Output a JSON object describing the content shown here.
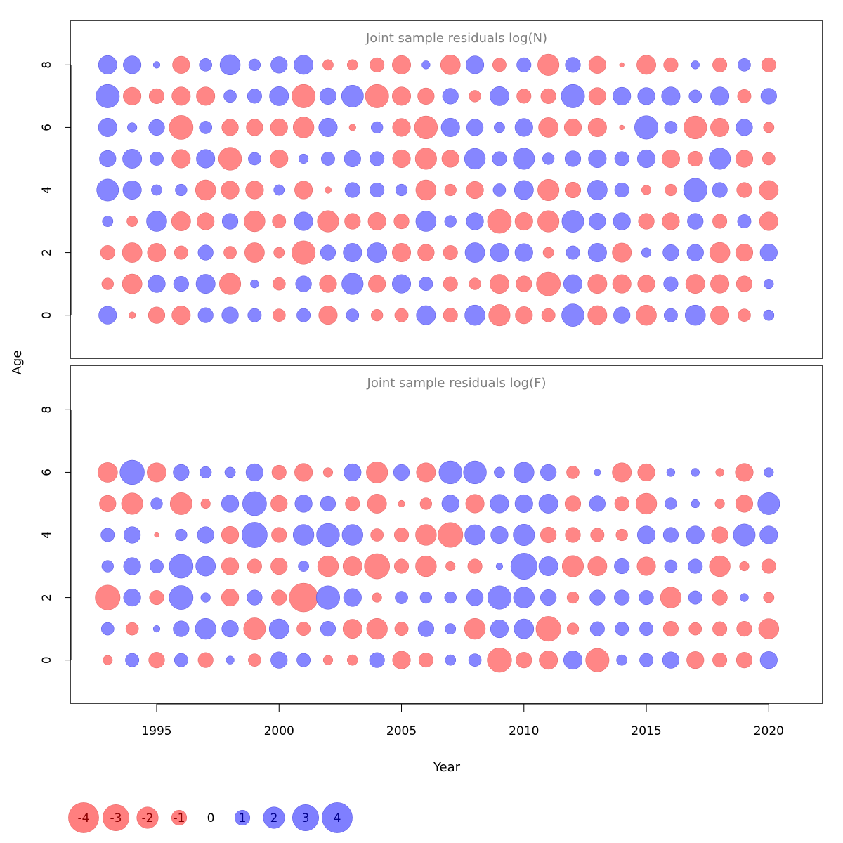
{
  "chart_data": {
    "type": "bubble",
    "xlabel": "Year",
    "ylabel": "Age",
    "xlim": [
      1991.5,
      2022.2
    ],
    "x_ticks": [
      1995,
      2000,
      2005,
      2010,
      2015,
      2020
    ],
    "colors": {
      "positive": "#7f7fff",
      "negative": "#ff7f7f",
      "positive_text": "#00008b",
      "negative_text": "#8b0000"
    },
    "legend": {
      "placement": "bottom-left",
      "values": [
        -4,
        -3,
        -2,
        -1,
        0,
        1,
        2,
        3,
        4
      ]
    },
    "panels": [
      {
        "title": "Joint sample residuals log(N)",
        "ylim": [
          -1.4,
          9.4
        ],
        "y_ticks": [
          0,
          2,
          4,
          6,
          8
        ],
        "years": [
          1993,
          1994,
          1995,
          1996,
          1997,
          1998,
          1999,
          2000,
          2001,
          2002,
          2003,
          2004,
          2005,
          2006,
          2007,
          2008,
          2009,
          2010,
          2011,
          2012,
          2013,
          2014,
          2015,
          2016,
          2017,
          2018,
          2019,
          2020
        ],
        "ages": [
          0,
          1,
          2,
          3,
          4,
          5,
          6,
          7,
          8
        ],
        "residuals": [
          [
            1.4,
            -0.2,
            -1.2,
            -1.5,
            1.0,
            1.2,
            0.8,
            -0.7,
            0.8,
            -1.5,
            0.7,
            -0.6,
            -0.8,
            1.6,
            -0.9,
            1.8,
            -2.0,
            -1.3,
            -0.8,
            2.2,
            -1.6,
            1.2,
            -1.8,
            0.8,
            1.8,
            -1.5,
            -0.7,
            0.5
          ],
          [
            -0.6,
            -1.7,
            1.3,
            1.0,
            1.6,
            -2.0,
            0.3,
            -0.7,
            1.1,
            -1.3,
            2.0,
            -1.3,
            1.5,
            0.8,
            -0.9,
            -0.6,
            -1.6,
            -1.1,
            -2.5,
            1.5,
            -1.6,
            -1.5,
            -1.3,
            0.9,
            -1.6,
            -1.5,
            -1.1,
            0.4
          ],
          [
            -0.9,
            -1.7,
            -1.5,
            -0.8,
            1.0,
            -0.7,
            -1.7,
            -0.5,
            -2.4,
            1.0,
            1.5,
            1.7,
            -1.5,
            -1.2,
            -0.9,
            1.7,
            1.5,
            1.4,
            -0.5,
            0.8,
            1.5,
            -1.6,
            0.4,
            1.1,
            1.2,
            -1.8,
            -1.3,
            1.3
          ],
          [
            0.5,
            -0.5,
            1.8,
            -1.6,
            -1.3,
            1.1,
            -1.9,
            -0.8,
            1.5,
            -2.0,
            -1.1,
            -1.4,
            -1.0,
            1.8,
            0.6,
            1.3,
            -2.5,
            -1.4,
            -2.0,
            2.1,
            1.2,
            1.3,
            -1.1,
            -1.3,
            1.1,
            -0.9,
            0.8,
            -1.5
          ],
          [
            2.1,
            1.5,
            0.5,
            0.6,
            -1.8,
            -1.4,
            -1.4,
            0.5,
            -1.4,
            -0.2,
            1.0,
            0.9,
            0.6,
            -1.8,
            -0.6,
            -1.3,
            0.7,
            1.6,
            -2.0,
            -1.1,
            1.7,
            0.9,
            -0.4,
            -0.6,
            2.4,
            1.0,
            -1.0,
            -1.6
          ],
          [
            1.2,
            1.6,
            0.8,
            -1.5,
            1.5,
            -2.3,
            0.7,
            -1.4,
            0.4,
            0.8,
            1.2,
            0.9,
            -1.4,
            -2.0,
            -1.3,
            1.9,
            0.9,
            2.0,
            0.6,
            1.1,
            1.4,
            0.9,
            1.4,
            -1.4,
            -1.0,
            2.0,
            -1.3,
            -0.7
          ],
          [
            1.5,
            0.4,
            1.1,
            -2.5,
            0.7,
            -1.2,
            -1.2,
            -1.3,
            -1.9,
            1.5,
            -0.2,
            0.6,
            -1.4,
            -2.3,
            1.5,
            1.2,
            0.5,
            1.4,
            -1.7,
            -1.3,
            -1.5,
            -0.1,
            2.4,
            0.7,
            -2.3,
            -1.5,
            1.2,
            -0.5
          ],
          [
            2.4,
            -1.4,
            -1.0,
            -1.5,
            -1.5,
            0.7,
            0.9,
            1.6,
            -2.4,
            1.2,
            2.1,
            -2.4,
            -1.5,
            -1.2,
            1.1,
            -0.6,
            1.6,
            -0.9,
            -1.0,
            2.4,
            -1.3,
            1.4,
            1.3,
            1.5,
            0.7,
            1.5,
            -0.8,
            1.1
          ],
          [
            1.5,
            1.4,
            0.2,
            -1.3,
            0.7,
            1.8,
            0.6,
            1.2,
            1.6,
            -0.5,
            -0.5,
            -0.9,
            -1.5,
            0.3,
            -1.7,
            1.4,
            -0.8,
            0.9,
            -2.0,
            1.0,
            -1.3,
            -0.1,
            -1.6,
            -0.9,
            0.3,
            -0.9,
            0.7,
            -0.9
          ]
        ]
      },
      {
        "title": "Joint sample residuals log(F)",
        "ylim": [
          -1.4,
          9.4
        ],
        "y_ticks": [
          0,
          2,
          4,
          6,
          8
        ],
        "years": [
          1993,
          1994,
          1995,
          1996,
          1997,
          1998,
          1999,
          2000,
          2001,
          2002,
          2003,
          2004,
          2005,
          2006,
          2007,
          2008,
          2009,
          2010,
          2011,
          2012,
          2013,
          2014,
          2015,
          2016,
          2017,
          2018,
          2019,
          2020
        ],
        "ages": [
          0,
          1,
          2,
          3,
          4,
          5,
          6
        ],
        "residuals": [
          [
            -0.4,
            0.8,
            -1.1,
            0.8,
            -1.0,
            0.3,
            -0.7,
            1.2,
            0.8,
            -0.4,
            -0.5,
            1.0,
            -1.4,
            -0.9,
            0.5,
            0.7,
            -2.6,
            -1.1,
            -1.5,
            1.5,
            -2.4,
            0.5,
            0.8,
            1.2,
            -1.3,
            -0.9,
            -1.1,
            1.3
          ],
          [
            0.7,
            -0.7,
            0.2,
            1.1,
            1.9,
            1.2,
            -2.1,
            1.7,
            -0.8,
            1.0,
            -1.6,
            -1.9,
            -0.8,
            1.1,
            0.5,
            -1.9,
            1.4,
            1.7,
            -2.7,
            -0.6,
            0.9,
            0.8,
            0.8,
            -1.0,
            -0.7,
            -0.9,
            -1.0,
            -1.8
          ],
          [
            -2.7,
            1.3,
            -0.9,
            2.5,
            0.4,
            -1.3,
            1.0,
            -1.0,
            -3.6,
            2.4,
            1.4,
            -0.4,
            0.7,
            0.6,
            0.6,
            1.2,
            2.4,
            1.9,
            1.1,
            -0.6,
            1.0,
            1.0,
            0.9,
            -1.9,
            0.8,
            -1.0,
            0.3,
            -0.5
          ],
          [
            0.6,
            1.3,
            0.8,
            2.5,
            1.7,
            -1.3,
            -0.9,
            -1.2,
            0.5,
            -1.9,
            -1.6,
            -2.8,
            -0.9,
            -1.9,
            -0.4,
            -0.9,
            0.2,
            3.0,
            1.6,
            -2.0,
            -1.6,
            1.0,
            -1.5,
            0.7,
            0.9,
            -1.9,
            -0.4,
            -0.9
          ],
          [
            0.8,
            1.2,
            -0.1,
            0.6,
            1.2,
            -1.3,
            2.8,
            -1.0,
            1.9,
            2.3,
            1.9,
            -0.7,
            -0.9,
            -1.9,
            -2.7,
            1.8,
            1.3,
            2.0,
            -1.1,
            -1.0,
            -0.8,
            -0.6,
            1.4,
            1.0,
            1.4,
            -1.2,
            2.1,
            1.4
          ],
          [
            -1.2,
            -2.0,
            0.6,
            -2.1,
            -0.4,
            1.3,
            2.5,
            -1.2,
            1.3,
            1.0,
            -0.9,
            -1.6,
            -0.2,
            -0.6,
            1.3,
            -1.5,
            1.5,
            1.4,
            1.6,
            -1.1,
            1.1,
            -0.9,
            -1.9,
            0.6,
            0.3,
            -0.4,
            -1.3,
            2.1
          ],
          [
            -1.7,
            2.6,
            -1.6,
            1.1,
            0.6,
            0.5,
            1.3,
            -0.9,
            -1.4,
            -0.4,
            1.3,
            -2.0,
            1.1,
            -1.6,
            2.3,
            2.3,
            0.5,
            1.8,
            1.1,
            -0.7,
            0.2,
            -1.6,
            -1.3,
            0.3,
            0.3,
            -0.3,
            -1.4,
            0.4
          ]
        ]
      }
    ]
  }
}
